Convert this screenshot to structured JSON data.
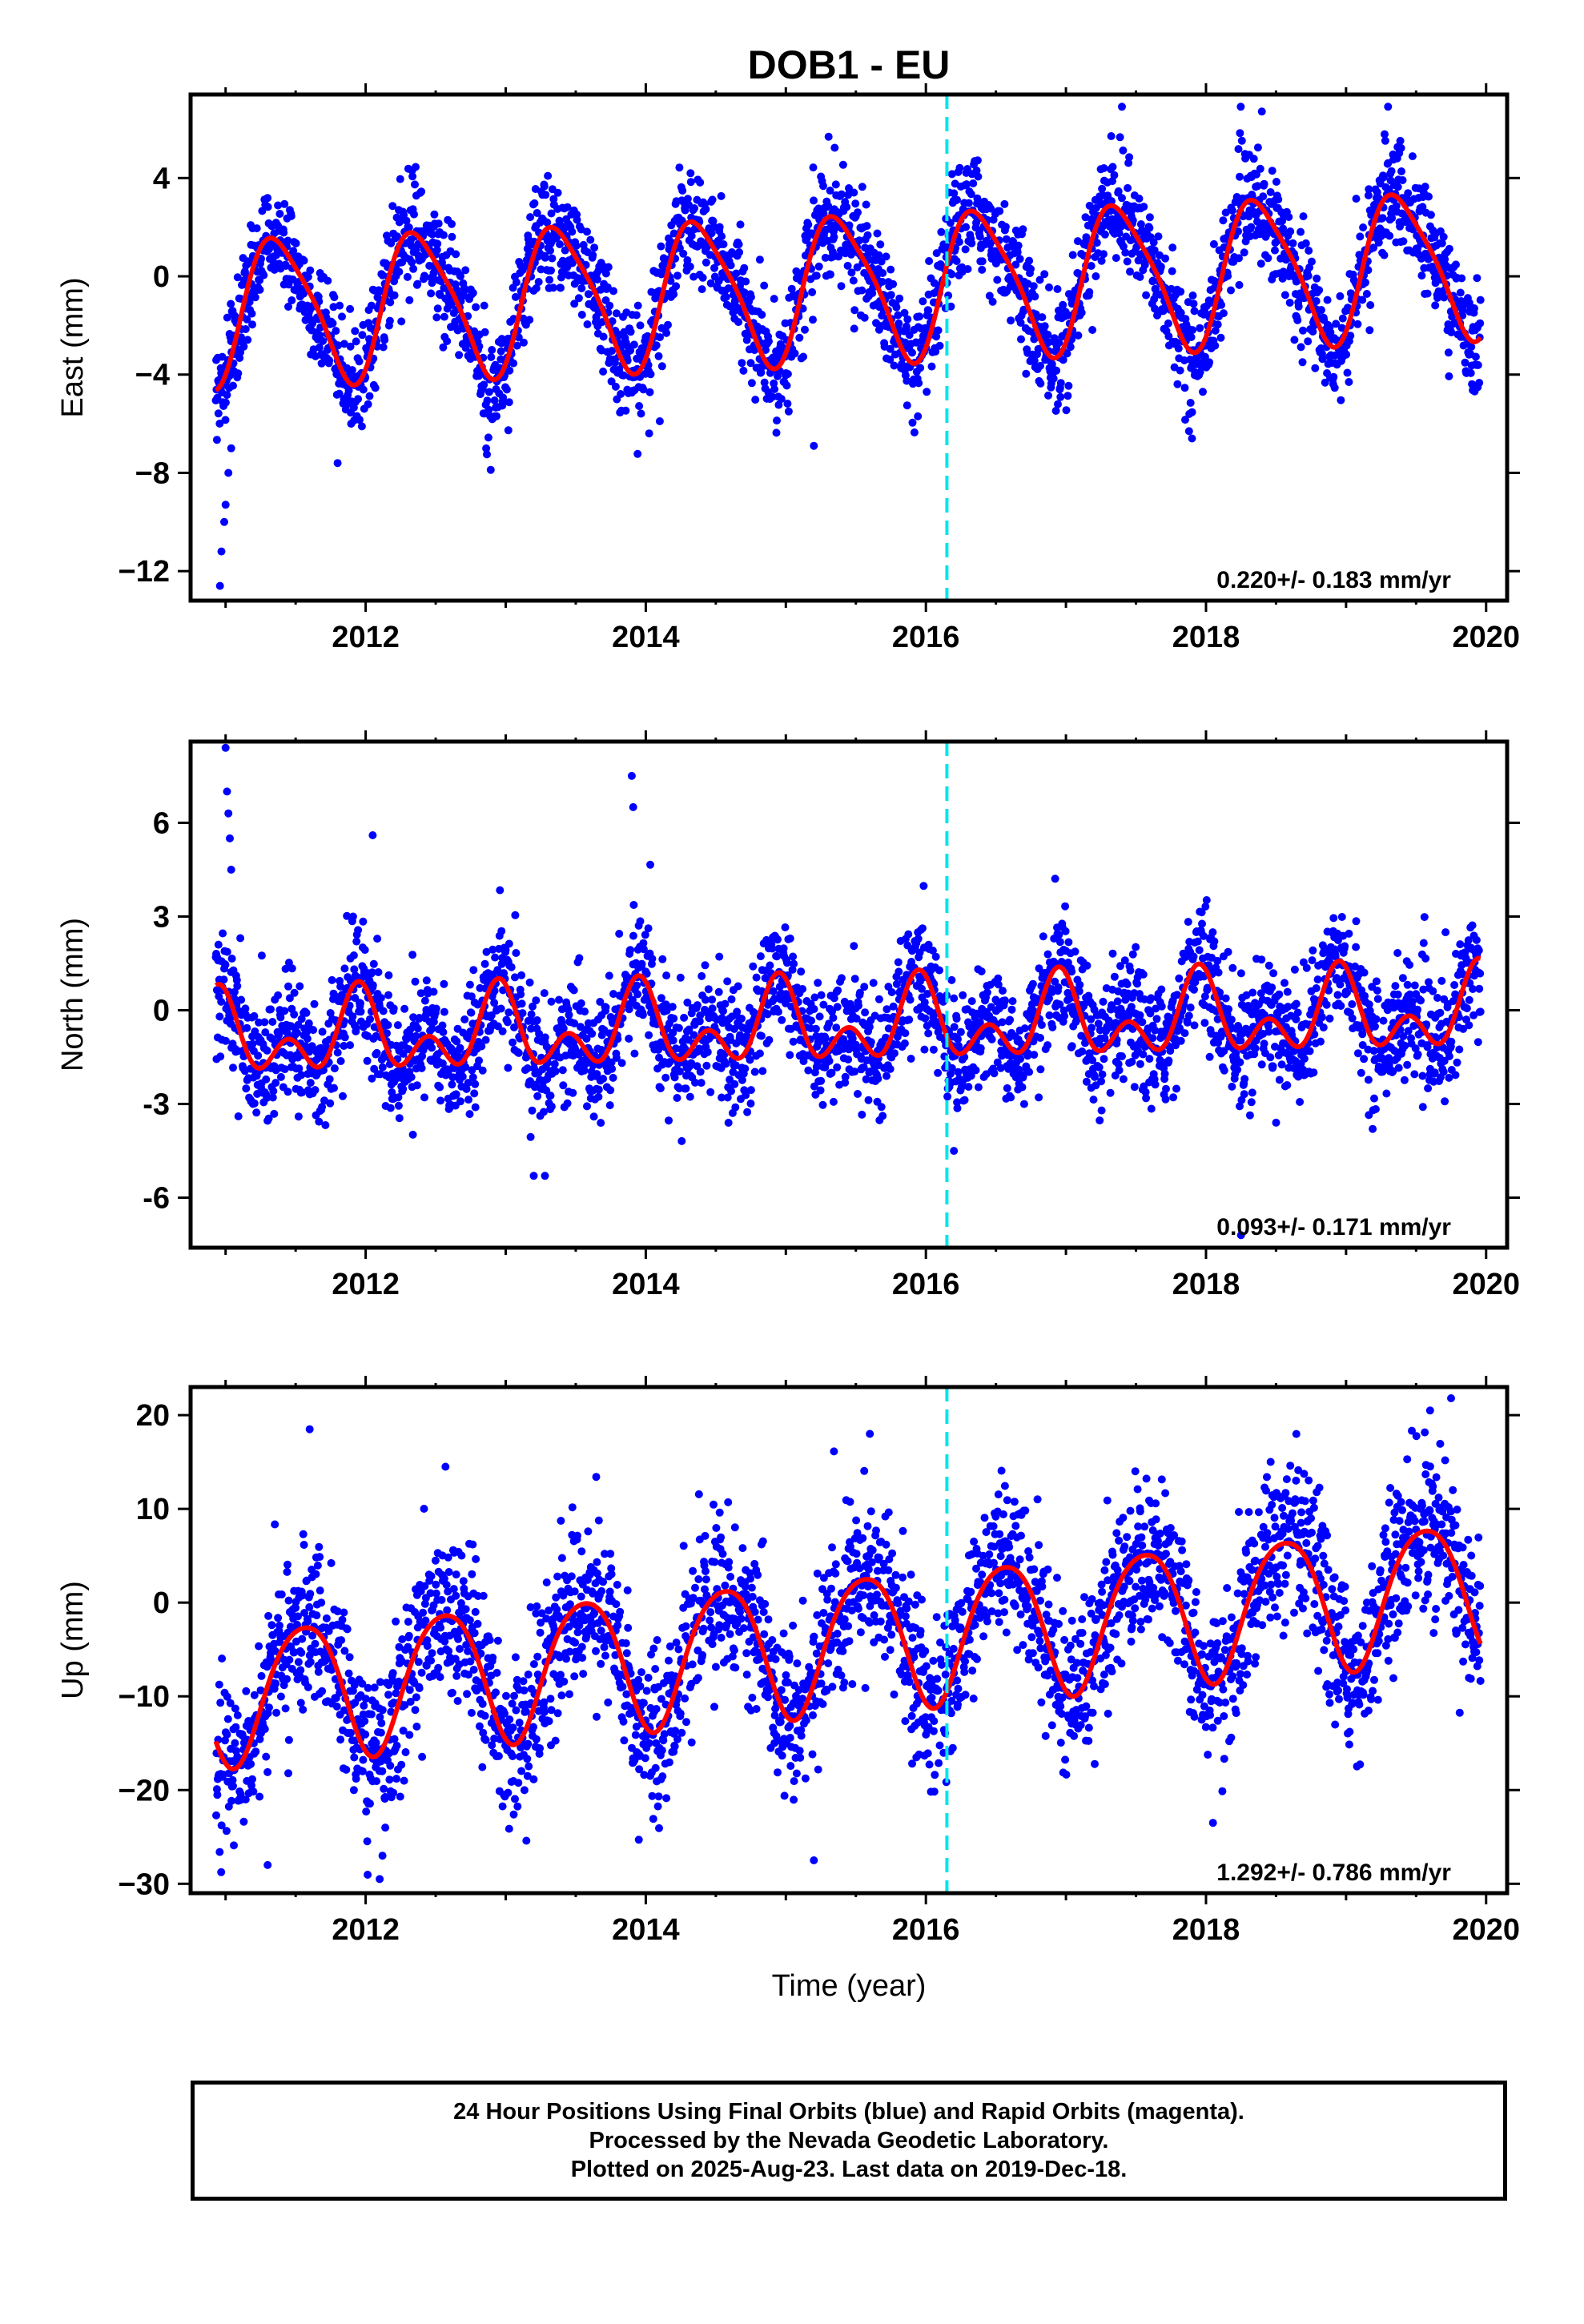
{
  "figure": {
    "title": "DOB1 - EU",
    "xlabel": "Time (year)"
  },
  "colors": {
    "final_orbits": "#0000ff",
    "model_fit": "#ff0000",
    "marker_line": "#00e5ee",
    "frame": "#000000"
  },
  "footer": {
    "line1": "24 Hour Positions Using Final Orbits (blue) and Rapid Orbits (magenta).",
    "line2": "Processed by the Nevada Geodetic Laboratory.",
    "line3": "Plotted on 2025-Aug-23. Last data on 2019-Dec-18."
  },
  "chart_data": [
    {
      "type": "scatter",
      "component": "east",
      "ylabel": "East (mm)",
      "rate_text": "0.220+/- 0.183 mm/yr",
      "xlim": [
        2010.75,
        2020.15
      ],
      "ylim": [
        -13.2,
        7.4
      ],
      "xticks": [
        2012,
        2014,
        2016,
        2018,
        2020
      ],
      "yticks": [
        -12,
        -8,
        -4,
        0,
        4
      ],
      "ytick_labels": [
        "−12",
        "−8",
        "−4",
        "0",
        "4"
      ],
      "x_start": 2010.93,
      "x_end": 2019.96,
      "marker_year": 2016.15,
      "model": {
        "offset": -0.4,
        "trend": 0.22,
        "annual_amp": 2.9,
        "annual_peak": 0.38,
        "semiannual_amp": 0.55,
        "semiannual_peak": 0.22,
        "scatter": 1.1
      },
      "outliers": [
        {
          "x": 2010.96,
          "y": -12.6
        },
        {
          "x": 2010.97,
          "y": -11.2
        },
        {
          "x": 2010.99,
          "y": -10.0
        },
        {
          "x": 2011.0,
          "y": -9.3
        },
        {
          "x": 2011.02,
          "y": -8.0
        },
        {
          "x": 2011.04,
          "y": -7.0
        },
        {
          "x": 2011.8,
          "y": -7.6
        },
        {
          "x": 2015.2,
          "y": -6.9
        },
        {
          "x": 2014.1,
          "y": -5.9
        },
        {
          "x": 2017.9,
          "y": -6.6
        },
        {
          "x": 2017.4,
          "y": 6.9
        },
        {
          "x": 2019.3,
          "y": 6.9
        }
      ],
      "legend": "bottom-right",
      "grid": false
    },
    {
      "type": "scatter",
      "component": "north",
      "ylabel": "North (mm)",
      "rate_text": "0.093+/- 0.171 mm/yr",
      "xlim": [
        2010.75,
        2020.15
      ],
      "ylim": [
        -7.6,
        8.6
      ],
      "xticks": [
        2012,
        2014,
        2016,
        2018,
        2020
      ],
      "yticks": [
        -6,
        -3,
        0,
        3,
        6
      ],
      "ytick_labels": [
        "-6",
        "-3",
        "0",
        "3",
        "6"
      ],
      "x_start": 2010.93,
      "x_end": 2019.96,
      "marker_year": 2016.15,
      "model": {
        "offset": -0.5,
        "trend": 0.093,
        "annual_amp": 0.9,
        "annual_peak": 0.95,
        "semiannual_amp": 0.85,
        "semiannual_peak": 0.45,
        "scatter": 0.95
      },
      "outliers": [
        {
          "x": 2011.0,
          "y": 8.4
        },
        {
          "x": 2011.01,
          "y": 7.0
        },
        {
          "x": 2011.02,
          "y": 6.3
        },
        {
          "x": 2011.03,
          "y": 5.5
        },
        {
          "x": 2011.04,
          "y": 4.5
        },
        {
          "x": 2012.05,
          "y": 5.6
        },
        {
          "x": 2013.9,
          "y": 7.5
        },
        {
          "x": 2013.91,
          "y": 6.5
        },
        {
          "x": 2013.2,
          "y": -5.3
        },
        {
          "x": 2013.28,
          "y": -5.3
        },
        {
          "x": 2016.2,
          "y": -4.5
        },
        {
          "x": 2018.25,
          "y": -7.2
        }
      ],
      "legend": "bottom-right",
      "grid": false
    },
    {
      "type": "scatter",
      "component": "up",
      "ylabel": "Up (mm)",
      "rate_text": "1.292+/- 0.786 mm/yr",
      "xlim": [
        2010.75,
        2020.15
      ],
      "ylim": [
        -31,
        23
      ],
      "xticks": [
        2012,
        2014,
        2016,
        2018,
        2020
      ],
      "yticks": [
        -30,
        -20,
        -10,
        0,
        10,
        20
      ],
      "ytick_labels": [
        "−30",
        "−20",
        "−10",
        "0",
        "10",
        "20"
      ],
      "x_start": 2010.93,
      "x_end": 2019.96,
      "marker_year": 2016.15,
      "model": {
        "offset": -4.0,
        "trend": 1.29,
        "annual_amp": 7.2,
        "annual_peak": 0.56,
        "semiannual_amp": 0.9,
        "semiannual_peak": 0.3,
        "scatter": 4.2
      },
      "outliers": [
        {
          "x": 2011.3,
          "y": -28.0
        },
        {
          "x": 2012.1,
          "y": -29.5
        },
        {
          "x": 2012.12,
          "y": -27.0
        },
        {
          "x": 2012.14,
          "y": -24.0
        },
        {
          "x": 2013.95,
          "y": -25.3
        },
        {
          "x": 2015.2,
          "y": -27.5
        },
        {
          "x": 2018.05,
          "y": -23.5
        },
        {
          "x": 2019.75,
          "y": 21.8
        },
        {
          "x": 2011.6,
          "y": 18.5
        },
        {
          "x": 2015.6,
          "y": 18.0
        },
        {
          "x": 2019.6,
          "y": 20.5
        }
      ],
      "legend": "bottom-right",
      "grid": false
    }
  ]
}
